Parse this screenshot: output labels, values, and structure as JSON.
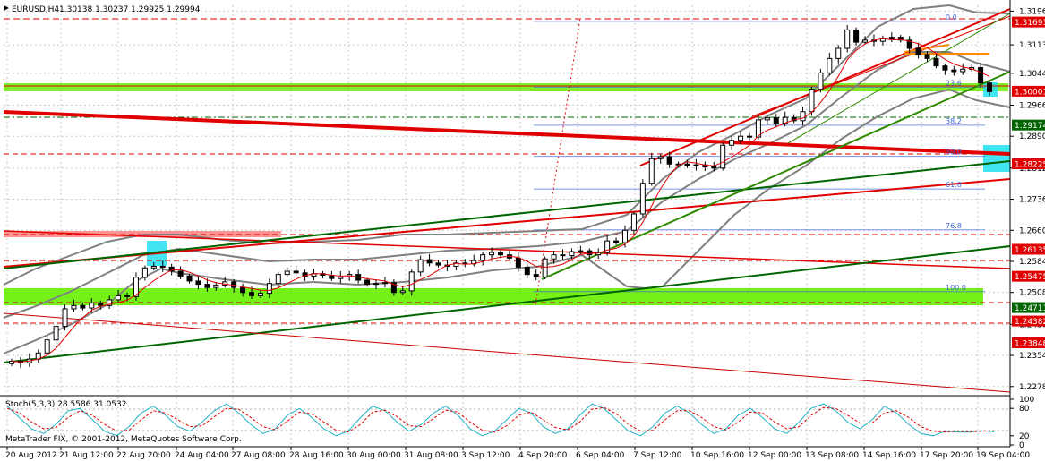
{
  "chart_data": {
    "type": "candlestick",
    "header": {
      "symbol_tf": "EURUSD,H4",
      "ohlc": "1.30138 1.30237 1.29925 1.29994"
    },
    "copyright": "MetaTrader FIX, © 2001-2012, MetaQuotes Software Corp.",
    "ylim": [
      1.226,
      1.321
    ],
    "y_ticks": [
      "1.31960",
      "1.31135",
      "1.30440",
      "1.29660",
      "1.28900",
      "1.28120",
      "1.27360",
      "1.26600",
      "1.25840",
      "1.25080",
      "1.24300",
      "1.23540",
      "1.22780"
    ],
    "x_labels": [
      "20 Aug 2012",
      "21 Aug 12:00",
      "22 Aug 20:00",
      "24 Aug 04:00",
      "27 Aug 08:00",
      "28 Aug 16:00",
      "30 Aug 00:00",
      "31 Aug 08:00",
      "3 Sep 12:00",
      "4 Sep 20:00",
      "6 Sep 04:00",
      "7 Sep 12:00",
      "10 Sep 16:00",
      "12 Sep 00:00",
      "13 Sep 08:00",
      "14 Sep 16:00",
      "17 Sep 20:00",
      "19 Sep 04:00"
    ],
    "price_badges": [
      {
        "label": "1.31693",
        "value": 1.31693,
        "color": "#e00000"
      },
      {
        "label": "1.30001",
        "value": 1.30001,
        "color": "#e00000"
      },
      {
        "label": "1.29174",
        "value": 1.29174,
        "color": "#006400"
      },
      {
        "label": "1.28225",
        "value": 1.28225,
        "color": "#e00000"
      },
      {
        "label": "1.26135",
        "value": 1.26135,
        "color": "#e00000"
      },
      {
        "label": "1.25475",
        "value": 1.25475,
        "color": "#e00000"
      },
      {
        "label": "1.24711",
        "value": 1.24711,
        "color": "#006400"
      },
      {
        "label": "1.24382",
        "value": 1.24382,
        "color": "#e00000"
      },
      {
        "label": "1.23848",
        "value": 1.23848,
        "color": "#e00000"
      }
    ],
    "fib_levels": [
      {
        "label": "0.0",
        "value": 1.3171
      },
      {
        "label": "23.6",
        "value": 1.301
      },
      {
        "label": "38.2",
        "value": 1.2917
      },
      {
        "label": "50.0",
        "value": 1.2841
      },
      {
        "label": "61.8",
        "value": 1.2761
      },
      {
        "label": "76.8",
        "value": 1.2661
      },
      {
        "label": "100.0",
        "value": 1.251
      }
    ],
    "close_series": [
      1.234,
      1.2336,
      1.2345,
      1.236,
      1.2392,
      1.2425,
      1.2468,
      1.2476,
      1.247,
      1.2482,
      1.2476,
      1.249,
      1.25,
      1.2498,
      1.2545,
      1.2568,
      1.2572,
      1.257,
      1.256,
      1.2548,
      1.2536,
      1.2528,
      1.252,
      1.2526,
      1.2534,
      1.252,
      1.2508,
      1.25,
      1.2506,
      1.253,
      1.2552,
      1.256,
      1.2556,
      1.2548,
      1.2554,
      1.255,
      1.2542,
      1.2546,
      1.2552,
      1.2538,
      1.2528,
      1.253,
      1.2532,
      1.2508,
      1.2512,
      1.2558,
      1.2588,
      1.258,
      1.2575,
      1.2572,
      1.258,
      1.2578,
      1.2586,
      1.26,
      1.2606,
      1.26,
      1.2592,
      1.257,
      1.2552,
      1.2546,
      1.259,
      1.26,
      1.2598,
      1.2608,
      1.261,
      1.26,
      1.2606,
      1.2634,
      1.263,
      1.266,
      1.27,
      1.2775,
      1.2835,
      1.284,
      1.2822,
      1.2822,
      1.2818,
      1.282,
      1.2815,
      1.2812,
      1.2868,
      1.288,
      1.289,
      1.2888,
      1.293,
      1.2935,
      1.2922,
      1.2936,
      1.2928,
      1.295,
      1.3005,
      1.3045,
      1.308,
      1.3105,
      1.315,
      1.312,
      1.3125,
      1.3122,
      1.3128,
      1.3132,
      1.3125,
      1.3105,
      1.309,
      1.308,
      1.3062,
      1.3052,
      1.3048,
      1.3054,
      1.3058,
      1.302,
      1.2999
    ],
    "stochastic": {
      "label": "Stoch(5,3,3) 28.5586 31.0532",
      "ylim": [
        0,
        100
      ],
      "ticks": [
        "100",
        "80",
        "20",
        "0"
      ],
      "main": [
        85,
        60,
        35,
        25,
        45,
        75,
        80,
        55,
        30,
        20,
        40,
        70,
        85,
        65,
        40,
        30,
        50,
        75,
        90,
        70,
        45,
        25,
        35,
        65,
        80,
        60,
        35,
        20,
        30,
        60,
        85,
        75,
        50,
        30,
        45,
        70,
        85,
        65,
        35,
        20,
        30,
        55,
        80,
        70,
        40,
        25,
        35,
        65,
        90,
        80,
        55,
        30,
        20,
        40,
        70,
        85,
        70,
        45,
        25,
        35,
        65,
        80,
        60,
        35,
        25,
        50,
        80,
        90,
        75,
        50,
        35,
        55,
        85,
        70,
        45,
        25,
        20,
        30,
        28,
        28,
        31,
        29
      ],
      "signal": [
        80,
        70,
        50,
        35,
        38,
        60,
        75,
        65,
        45,
        30,
        32,
        55,
        75,
        70,
        55,
        40,
        42,
        62,
        80,
        78,
        60,
        40,
        33,
        52,
        72,
        68,
        50,
        32,
        28,
        45,
        72,
        76,
        62,
        42,
        40,
        58,
        76,
        72,
        50,
        32,
        28,
        42,
        65,
        72,
        55,
        38,
        33,
        50,
        78,
        82,
        68,
        45,
        30,
        32,
        55,
        75,
        75,
        60,
        40,
        33,
        50,
        72,
        70,
        50,
        35,
        40,
        65,
        82,
        80,
        65,
        48,
        48,
        70,
        75,
        60,
        40,
        30,
        28,
        30,
        29,
        30,
        31
      ]
    }
  }
}
